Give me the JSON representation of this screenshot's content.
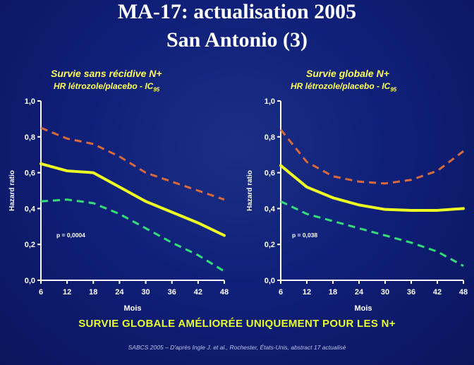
{
  "slide": {
    "title_line1": "MA-17: actualisation 2005",
    "title_line2": "San Antonio (3)",
    "banner": "SURVIE GLOBALE AMÉLIORÉE UNIQUEMENT POUR LES N+",
    "footer": "SABCS 2005 – D'après Ingle J. et al., Rochester, États-Unis, abstract 17 actualisé"
  },
  "colors": {
    "estimate": "#eeff22",
    "upper_ci": "#d86a3a",
    "lower_ci": "#33dd77",
    "axis": "#ffffff",
    "title_text": "#ffff55"
  },
  "chart_data": [
    {
      "type": "line",
      "title": "Survie sans récidive N+",
      "subtitle_main": "HR létrozole/placebo - IC",
      "subtitle_sub": "95",
      "xlabel": "Mois",
      "ylabel": "Hazard ratio",
      "x": [
        6,
        12,
        18,
        24,
        30,
        36,
        42,
        48
      ],
      "xlim": [
        6,
        48
      ],
      "ylim": [
        0,
        1
      ],
      "yticks": [
        "0,0",
        "0,2",
        "0,4",
        "0,6",
        "0,8",
        "1,0"
      ],
      "annotation": "p = 0,0004",
      "series": [
        {
          "role": "upper_ci",
          "values": [
            0.85,
            0.79,
            0.76,
            0.69,
            0.6,
            0.55,
            0.5,
            0.45
          ]
        },
        {
          "role": "estimate",
          "values": [
            0.65,
            0.61,
            0.6,
            0.52,
            0.44,
            0.38,
            0.32,
            0.25
          ]
        },
        {
          "role": "lower_ci",
          "values": [
            0.44,
            0.45,
            0.43,
            0.37,
            0.29,
            0.21,
            0.14,
            0.05
          ]
        }
      ]
    },
    {
      "type": "line",
      "title": "Survie globale N+",
      "subtitle_main": "HR létrozole/placebo - IC",
      "subtitle_sub": "95",
      "xlabel": "Mois",
      "ylabel": "Hazard ratio",
      "x": [
        6,
        12,
        18,
        24,
        30,
        36,
        42,
        48
      ],
      "xlim": [
        6,
        48
      ],
      "ylim": [
        0,
        1
      ],
      "yticks": [
        "0,0",
        "0,2",
        "0,4",
        "0,6",
        "0,8",
        "1,0"
      ],
      "annotation": "p = 0,038",
      "series": [
        {
          "role": "upper_ci",
          "values": [
            0.84,
            0.66,
            0.58,
            0.55,
            0.54,
            0.56,
            0.61,
            0.72
          ]
        },
        {
          "role": "estimate",
          "values": [
            0.64,
            0.52,
            0.46,
            0.42,
            0.395,
            0.39,
            0.39,
            0.4
          ]
        },
        {
          "role": "lower_ci",
          "values": [
            0.44,
            0.37,
            0.33,
            0.29,
            0.25,
            0.21,
            0.16,
            0.08
          ]
        }
      ]
    }
  ]
}
